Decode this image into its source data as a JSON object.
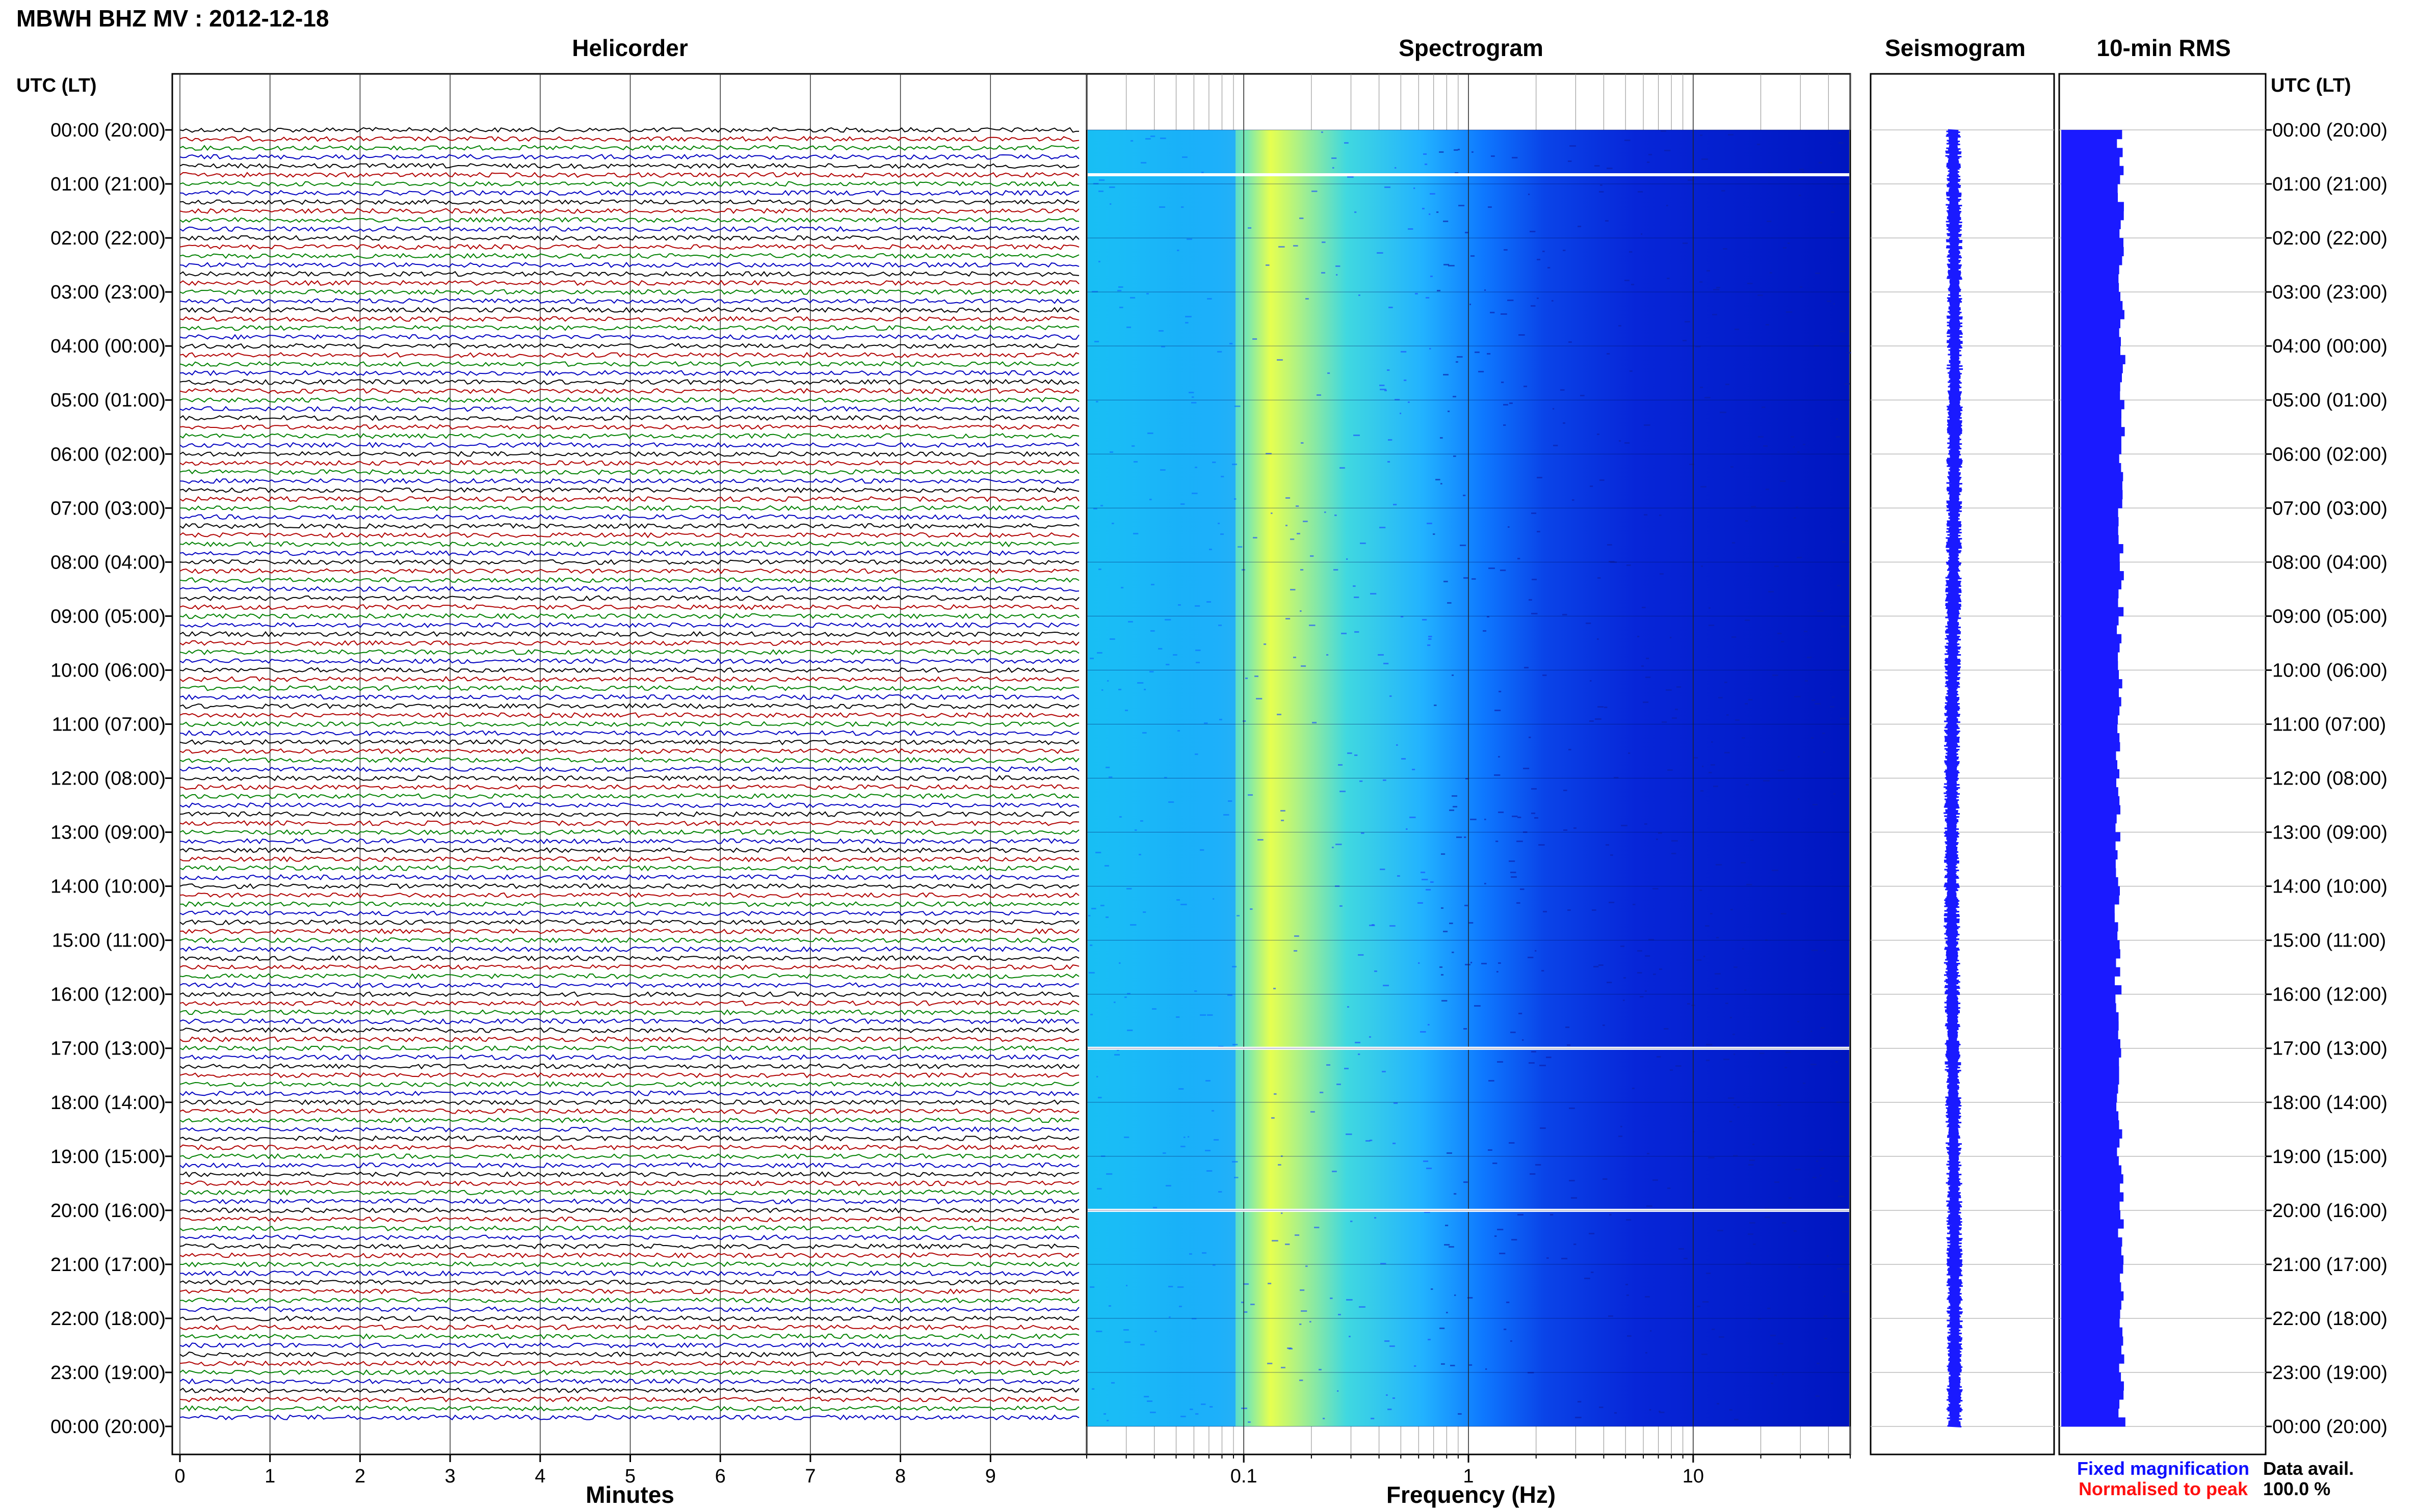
{
  "header": {
    "station_title": "MBWH BHZ MV : 2012-12-18"
  },
  "panels": {
    "helicorder": "Helicorder",
    "spectrogram": "Spectrogram",
    "seismogram": "Seismogram",
    "rms": "10-min RMS"
  },
  "axis_labels": {
    "left_time": "UTC (LT)",
    "right_time": "UTC (LT)",
    "minutes": "Minutes",
    "frequency": "Frequency (Hz)"
  },
  "legend": {
    "fixed": "Fixed magnification",
    "normalised": "Normalised to peak",
    "fixed_color": "#1010ff",
    "normalised_color": "#ff1010"
  },
  "availability": {
    "label": "Data avail.",
    "value": "100.0 %"
  },
  "time_labels": [
    "00:00 (20:00)",
    "01:00 (21:00)",
    "02:00 (22:00)",
    "03:00 (23:00)",
    "04:00 (00:00)",
    "05:00 (01:00)",
    "06:00 (02:00)",
    "07:00 (03:00)",
    "08:00 (04:00)",
    "09:00 (05:00)",
    "10:00 (06:00)",
    "11:00 (07:00)",
    "12:00 (08:00)",
    "13:00 (09:00)",
    "14:00 (10:00)",
    "15:00 (11:00)",
    "16:00 (12:00)",
    "17:00 (13:00)",
    "18:00 (14:00)",
    "19:00 (15:00)",
    "20:00 (16:00)",
    "21:00 (17:00)",
    "22:00 (18:00)",
    "23:00 (19:00)",
    "00:00 (20:00)"
  ],
  "chart_data": [
    {
      "type": "line",
      "title": "Helicorder",
      "xlabel": "Minutes",
      "ylabel": "UTC (LT)",
      "x_ticks": [
        "0",
        "1",
        "2",
        "3",
        "4",
        "5",
        "6",
        "7",
        "8",
        "9"
      ],
      "xlim": [
        0,
        10
      ],
      "rows_per_hour": 6,
      "trace_colors": [
        "#000000",
        "#b00000",
        "#008000",
        "#0000c0"
      ],
      "grid": true
    },
    {
      "type": "heatmap",
      "title": "Spectrogram",
      "xlabel": "Frequency (Hz)",
      "x_scale": "log",
      "xlim": [
        0.02,
        50
      ],
      "x_ticks": [
        "0.1",
        "1",
        "10"
      ],
      "gaps_at_hours": [
        0.83,
        17,
        20
      ],
      "colormap": [
        "#0010c8",
        "#0a6cff",
        "#14c8ff",
        "#50f0d0",
        "#e8ff40"
      ]
    },
    {
      "type": "line",
      "title": "Seismogram",
      "color": "#1a1aff"
    },
    {
      "type": "bar",
      "title": "10-min RMS",
      "orientation": "horizontal",
      "color": "#1a1aff",
      "bins_per_hour": 6
    }
  ]
}
